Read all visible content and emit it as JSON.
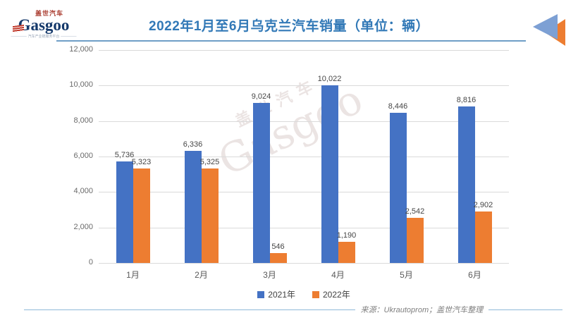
{
  "header": {
    "logo": {
      "brand_cn": "盖世汽车",
      "brand_en": "Gasgoo",
      "tagline": "汽车产业链服务平台"
    },
    "title": "2022年1月至6月乌克兰汽车销量（单位：辆）"
  },
  "watermark": {
    "cn": "盖世汽车",
    "en": "Gasgoo"
  },
  "footer": {
    "source": "来源：Ukrautoprom；盖世汽车整理"
  },
  "chart_data": {
    "type": "bar",
    "title": "2022年1月至6月乌克兰汽车销量（单位：辆）",
    "categories": [
      "1月",
      "2月",
      "3月",
      "4月",
      "5月",
      "6月"
    ],
    "series": [
      {
        "name": "2021年",
        "color": "#4472c4",
        "values": [
          5736,
          6336,
          9024,
          10022,
          8446,
          8816
        ]
      },
      {
        "name": "2022年",
        "color": "#ed7d31",
        "values": [
          5323,
          5325,
          546,
          1190,
          2542,
          2902
        ]
      }
    ],
    "ylabel": "",
    "xlabel": "",
    "ylim": [
      0,
      12000
    ],
    "ytick_step": 2000,
    "grid": true,
    "legend_position": "bottom"
  }
}
